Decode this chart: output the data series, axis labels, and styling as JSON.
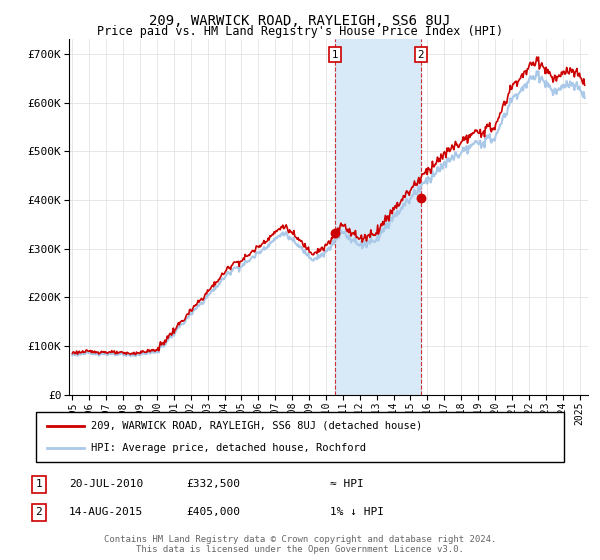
{
  "title": "209, WARWICK ROAD, RAYLEIGH, SS6 8UJ",
  "subtitle": "Price paid vs. HM Land Registry's House Price Index (HPI)",
  "title_fontsize": 10,
  "subtitle_fontsize": 8.5,
  "ytick_values": [
    0,
    100000,
    200000,
    300000,
    400000,
    500000,
    600000,
    700000
  ],
  "ylim": [
    0,
    730000
  ],
  "xlim_start": 1994.8,
  "xlim_end": 2025.5,
  "hpi_color": "#aac8e8",
  "price_line_color": "#cc0000",
  "transaction1_date": 2010.55,
  "transaction1_price": 332500,
  "transaction2_date": 2015.62,
  "transaction2_price": 405000,
  "shaded_color": "#d8eaf8",
  "vline_color": "#cc0000",
  "legend_line1": "209, WARWICK ROAD, RAYLEIGH, SS6 8UJ (detached house)",
  "legend_line2": "HPI: Average price, detached house, Rochford",
  "note1_label": "1",
  "note1_date": "20-JUL-2010",
  "note1_price": "£332,500",
  "note1_hpi": "≈ HPI",
  "note2_label": "2",
  "note2_date": "14-AUG-2015",
  "note2_price": "£405,000",
  "note2_hpi": "1% ↓ HPI",
  "footer": "Contains HM Land Registry data © Crown copyright and database right 2024.\nThis data is licensed under the Open Government Licence v3.0.",
  "background_color": "#ffffff",
  "grid_color": "#dddddd"
}
